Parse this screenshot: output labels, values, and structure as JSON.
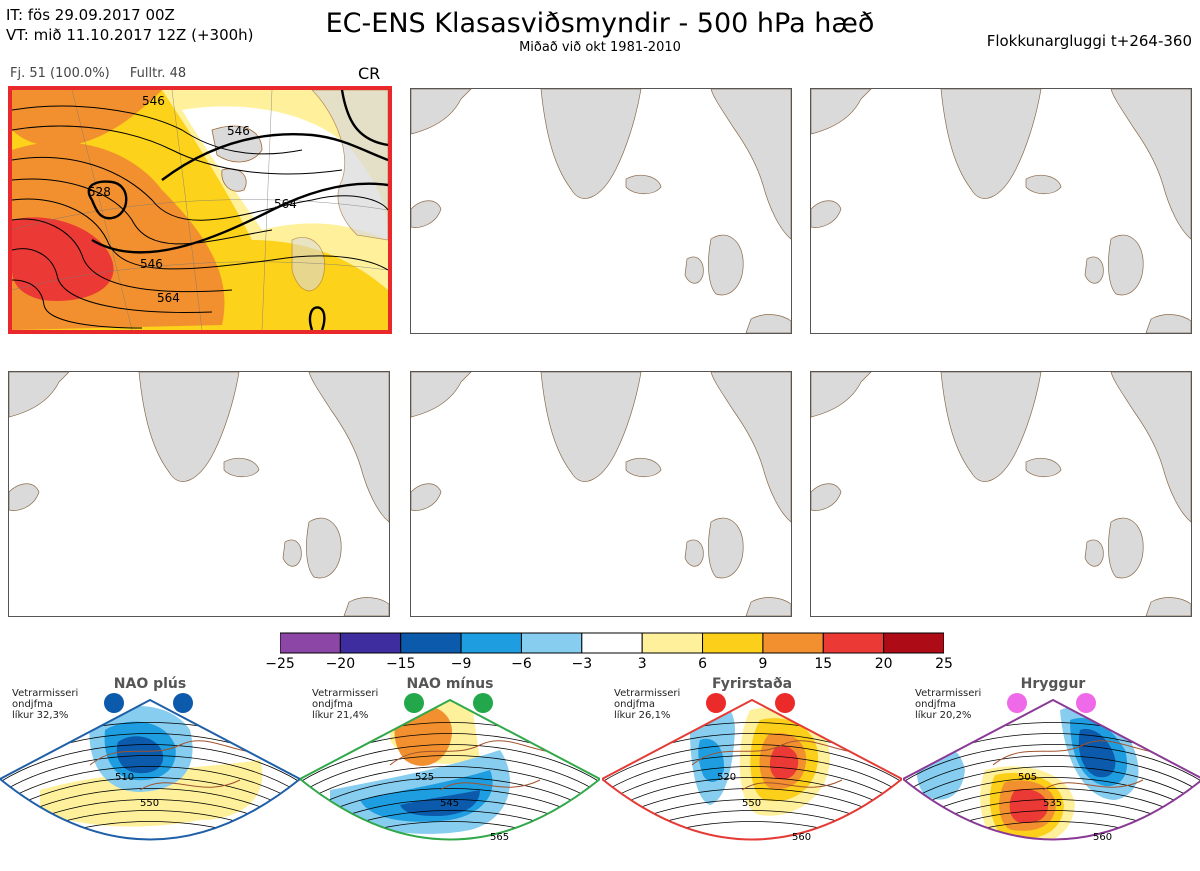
{
  "header": {
    "it_line": "IT: fös 29.09.2017 00Z",
    "vt_line": "VT: mið 11.10.2017 12Z  (+300h)",
    "title": "EC-ENS Klasasviðsmyndir - 500 hPa hæð",
    "subtitle": "Miðað við okt 1981-2010",
    "right_label": "Flokkunargluggi t+264-360"
  },
  "cluster": {
    "members_label": "Fj. 51 (100.0%)",
    "representative_label": "Fulltr. 48",
    "regime_code": "CR",
    "contour_labels": [
      "546",
      "546",
      "528",
      "546",
      "564",
      "564"
    ]
  },
  "chart_data": {
    "type": "heatmap",
    "title": "EC-ENS Klasasviðsmyndir - 500 hPa hæð",
    "colorbar": {
      "ticks": [
        "−25",
        "−20",
        "−15",
        "−9",
        "−6",
        "−3",
        "3",
        "6",
        "9",
        "15",
        "20",
        "25"
      ],
      "colors": [
        "#8b46a6",
        "#3d2d9e",
        "#0b5aab",
        "#1e9ee0",
        "#86cdf0",
        "#ffffff",
        "#fff19c",
        "#fccf1a",
        "#f2902f",
        "#eb3a35",
        "#ad0c17"
      ]
    },
    "regimes": [
      {
        "name": "NAO plús",
        "prob": "Vetrarmisseri\nondjfma\nlíkur 32,3%",
        "contours": [
          "510",
          "550"
        ],
        "marker_color": "#0b5aab",
        "frame_color": "#1f5fa8"
      },
      {
        "name": "NAO mínus",
        "prob": "Vetrarmisseri\nondjfma\nlíkur 21,4%",
        "contours": [
          "525",
          "545",
          "565"
        ],
        "marker_color": "#22a84a",
        "frame_color": "#31a84a"
      },
      {
        "name": "Fyrirstaða",
        "prob": "Vetrarmisseri\nondjfma\nlíkur 26,1%",
        "contours": [
          "520",
          "550",
          "560"
        ],
        "marker_color": "#eb2a2a",
        "frame_color": "#e43b35"
      },
      {
        "name": "Hryggur",
        "prob": "Vetrarmisseri\nondjfma\nlíkur 20,2%",
        "contours": [
          "505",
          "535",
          "560"
        ],
        "marker_color": "#ef6ae8",
        "frame_color": "#8a3a96"
      }
    ]
  }
}
